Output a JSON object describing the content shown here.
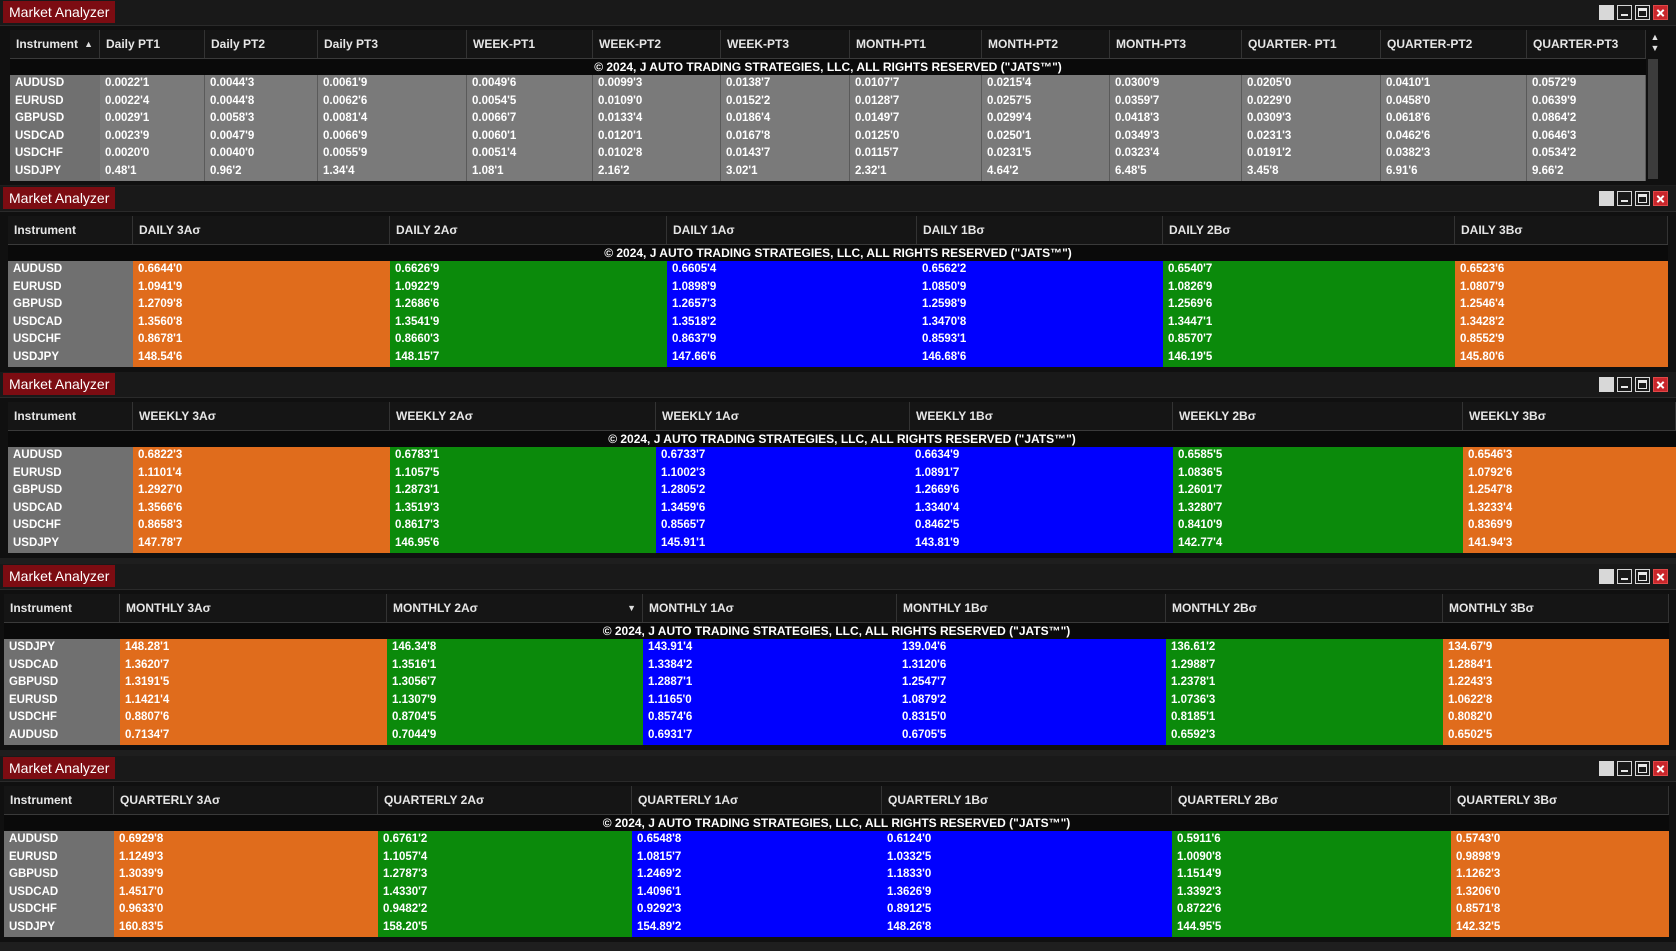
{
  "app_title": "Market Analyzer",
  "copyright": "© 2024, J AUTO TRADING STRATEGIES, LLC, ALL RIGHTS RESERVED (\"JATS™\")",
  "colors": {
    "orange": "#e06c1c",
    "green": "#0b8a0b",
    "blue": "#0000ff",
    "neutral": "#7a7a7a",
    "instrument": "#707070",
    "title_bg": "#7c0c12"
  },
  "windows": [
    {
      "title": "Market Analyzer",
      "columns": [
        "Instrument",
        "Daily PT1",
        "Daily PT2",
        "Daily PT3",
        "WEEK-PT1",
        "WEEK-PT2",
        "WEEK-PT3",
        "MONTH-PT1",
        "MONTH-PT2",
        "MONTH-PT3",
        "QUARTER- PT1",
        "QUARTER-PT2",
        "QUARTER-PT3"
      ],
      "rows": [
        {
          "instrument": "AUDUSD",
          "values": [
            "0.0022'1",
            "0.0044'3",
            "0.0061'9",
            "0.0049'6",
            "0.0099'3",
            "0.0138'7",
            "0.0107'7",
            "0.0215'4",
            "0.0300'9",
            "0.0205'0",
            "0.0410'1",
            "0.0572'9"
          ]
        },
        {
          "instrument": "EURUSD",
          "values": [
            "0.0022'4",
            "0.0044'8",
            "0.0062'6",
            "0.0054'5",
            "0.0109'0",
            "0.0152'2",
            "0.0128'7",
            "0.0257'5",
            "0.0359'7",
            "0.0229'0",
            "0.0458'0",
            "0.0639'9"
          ]
        },
        {
          "instrument": "GBPUSD",
          "values": [
            "0.0029'1",
            "0.0058'3",
            "0.0081'4",
            "0.0066'7",
            "0.0133'4",
            "0.0186'4",
            "0.0149'7",
            "0.0299'4",
            "0.0418'3",
            "0.0309'3",
            "0.0618'6",
            "0.0864'2"
          ]
        },
        {
          "instrument": "USDCAD",
          "values": [
            "0.0023'9",
            "0.0047'9",
            "0.0066'9",
            "0.0060'1",
            "0.0120'1",
            "0.0167'8",
            "0.0125'0",
            "0.0250'1",
            "0.0349'3",
            "0.0231'3",
            "0.0462'6",
            "0.0646'3"
          ]
        },
        {
          "instrument": "USDCHF",
          "values": [
            "0.0020'0",
            "0.0040'0",
            "0.0055'9",
            "0.0051'4",
            "0.0102'8",
            "0.0143'7",
            "0.0115'7",
            "0.0231'5",
            "0.0323'4",
            "0.0191'2",
            "0.0382'3",
            "0.0534'2"
          ]
        },
        {
          "instrument": "USDJPY",
          "values": [
            "0.48'1",
            "0.96'2",
            "1.34'4",
            "1.08'1",
            "2.16'2",
            "3.02'1",
            "2.32'1",
            "4.64'2",
            "6.48'5",
            "3.45'8",
            "6.91'6",
            "9.66'2"
          ]
        }
      ]
    },
    {
      "title": "Market Analyzer",
      "columns": [
        "Instrument",
        "DAILY 3Aσ",
        "DAILY 2Aσ",
        "DAILY 1Aσ",
        "DAILY 1Bσ",
        "DAILY 2Bσ",
        "DAILY 3Bσ"
      ],
      "rows": [
        {
          "instrument": "AUDUSD",
          "values": [
            "0.6644'0",
            "0.6626'9",
            "0.6605'4",
            "0.6562'2",
            "0.6540'7",
            "0.6523'6"
          ]
        },
        {
          "instrument": "EURUSD",
          "values": [
            "1.0941'9",
            "1.0922'9",
            "1.0898'9",
            "1.0850'9",
            "1.0826'9",
            "1.0807'9"
          ]
        },
        {
          "instrument": "GBPUSD",
          "values": [
            "1.2709'8",
            "1.2686'6",
            "1.2657'3",
            "1.2598'9",
            "1.2569'6",
            "1.2546'4"
          ]
        },
        {
          "instrument": "USDCAD",
          "values": [
            "1.3560'8",
            "1.3541'9",
            "1.3518'2",
            "1.3470'8",
            "1.3447'1",
            "1.3428'2"
          ]
        },
        {
          "instrument": "USDCHF",
          "values": [
            "0.8678'1",
            "0.8660'3",
            "0.8637'9",
            "0.8593'1",
            "0.8570'7",
            "0.8552'9"
          ]
        },
        {
          "instrument": "USDJPY",
          "values": [
            "148.54'6",
            "148.15'7",
            "147.66'6",
            "146.68'6",
            "146.19'5",
            "145.80'6"
          ]
        }
      ]
    },
    {
      "title": "Market Analyzer",
      "columns": [
        "Instrument",
        "WEEKLY 3Aσ",
        "WEEKLY 2Aσ",
        "WEEKLY 1Aσ",
        "WEEKLY 1Bσ",
        "WEEKLY 2Bσ",
        "WEEKLY 3Bσ"
      ],
      "rows": [
        {
          "instrument": "AUDUSD",
          "values": [
            "0.6822'3",
            "0.6783'1",
            "0.6733'7",
            "0.6634'9",
            "0.6585'5",
            "0.6546'3"
          ]
        },
        {
          "instrument": "EURUSD",
          "values": [
            "1.1101'4",
            "1.1057'5",
            "1.1002'3",
            "1.0891'7",
            "1.0836'5",
            "1.0792'6"
          ]
        },
        {
          "instrument": "GBPUSD",
          "values": [
            "1.2927'0",
            "1.2873'1",
            "1.2805'2",
            "1.2669'6",
            "1.2601'7",
            "1.2547'8"
          ]
        },
        {
          "instrument": "USDCAD",
          "values": [
            "1.3566'6",
            "1.3519'3",
            "1.3459'6",
            "1.3340'4",
            "1.3280'7",
            "1.3233'4"
          ]
        },
        {
          "instrument": "USDCHF",
          "values": [
            "0.8658'3",
            "0.8617'3",
            "0.8565'7",
            "0.8462'5",
            "0.8410'9",
            "0.8369'9"
          ]
        },
        {
          "instrument": "USDJPY",
          "values": [
            "147.78'7",
            "146.95'6",
            "145.91'1",
            "143.81'9",
            "142.77'4",
            "141.94'3"
          ]
        }
      ]
    },
    {
      "title": "Market Analyzer",
      "columns": [
        "Instrument",
        "MONTHLY 3Aσ",
        "MONTHLY 2Aσ",
        "MONTHLY 1Aσ",
        "MONTHLY 1Bσ",
        "MONTHLY 2Bσ",
        "MONTHLY 3Bσ"
      ],
      "rows": [
        {
          "instrument": "USDJPY",
          "values": [
            "148.28'1",
            "146.34'8",
            "143.91'4",
            "139.04'6",
            "136.61'2",
            "134.67'9"
          ]
        },
        {
          "instrument": "USDCAD",
          "values": [
            "1.3620'7",
            "1.3516'1",
            "1.3384'2",
            "1.3120'6",
            "1.2988'7",
            "1.2884'1"
          ]
        },
        {
          "instrument": "GBPUSD",
          "values": [
            "1.3191'5",
            "1.3056'7",
            "1.2887'1",
            "1.2547'7",
            "1.2378'1",
            "1.2243'3"
          ]
        },
        {
          "instrument": "EURUSD",
          "values": [
            "1.1421'4",
            "1.1307'9",
            "1.1165'0",
            "1.0879'2",
            "1.0736'3",
            "1.0622'8"
          ]
        },
        {
          "instrument": "USDCHF",
          "values": [
            "0.8807'6",
            "0.8704'5",
            "0.8574'6",
            "0.8315'0",
            "0.8185'1",
            "0.8082'0"
          ]
        },
        {
          "instrument": "AUDUSD",
          "values": [
            "0.7134'7",
            "0.7044'9",
            "0.6931'7",
            "0.6705'5",
            "0.6592'3",
            "0.6502'5"
          ]
        }
      ]
    },
    {
      "title": "Market Analyzer",
      "columns": [
        "Instrument",
        "QUARTERLY 3Aσ",
        "QUARTERLY 2Aσ",
        "QUARTERLY 1Aσ",
        "QUARTERLY 1Bσ",
        "QUARTERLY 2Bσ",
        "QUARTERLY 3Bσ"
      ],
      "rows": [
        {
          "instrument": "AUDUSD",
          "values": [
            "0.6929'8",
            "0.6761'2",
            "0.6548'8",
            "0.6124'0",
            "0.5911'6",
            "0.5743'0"
          ]
        },
        {
          "instrument": "EURUSD",
          "values": [
            "1.1249'3",
            "1.1057'4",
            "1.0815'7",
            "1.0332'5",
            "1.0090'8",
            "0.9898'9"
          ]
        },
        {
          "instrument": "GBPUSD",
          "values": [
            "1.3039'9",
            "1.2787'3",
            "1.2469'2",
            "1.1833'0",
            "1.1514'9",
            "1.1262'3"
          ]
        },
        {
          "instrument": "USDCAD",
          "values": [
            "1.4517'0",
            "1.4330'7",
            "1.4096'1",
            "1.3626'9",
            "1.3392'3",
            "1.3206'0"
          ]
        },
        {
          "instrument": "USDCHF",
          "values": [
            "0.9633'0",
            "0.9482'2",
            "0.9292'3",
            "0.8912'5",
            "0.8722'6",
            "0.8571'8"
          ]
        },
        {
          "instrument": "USDJPY",
          "values": [
            "160.83'5",
            "158.20'5",
            "154.89'2",
            "148.26'8",
            "144.95'5",
            "142.32'5"
          ]
        }
      ]
    }
  ]
}
